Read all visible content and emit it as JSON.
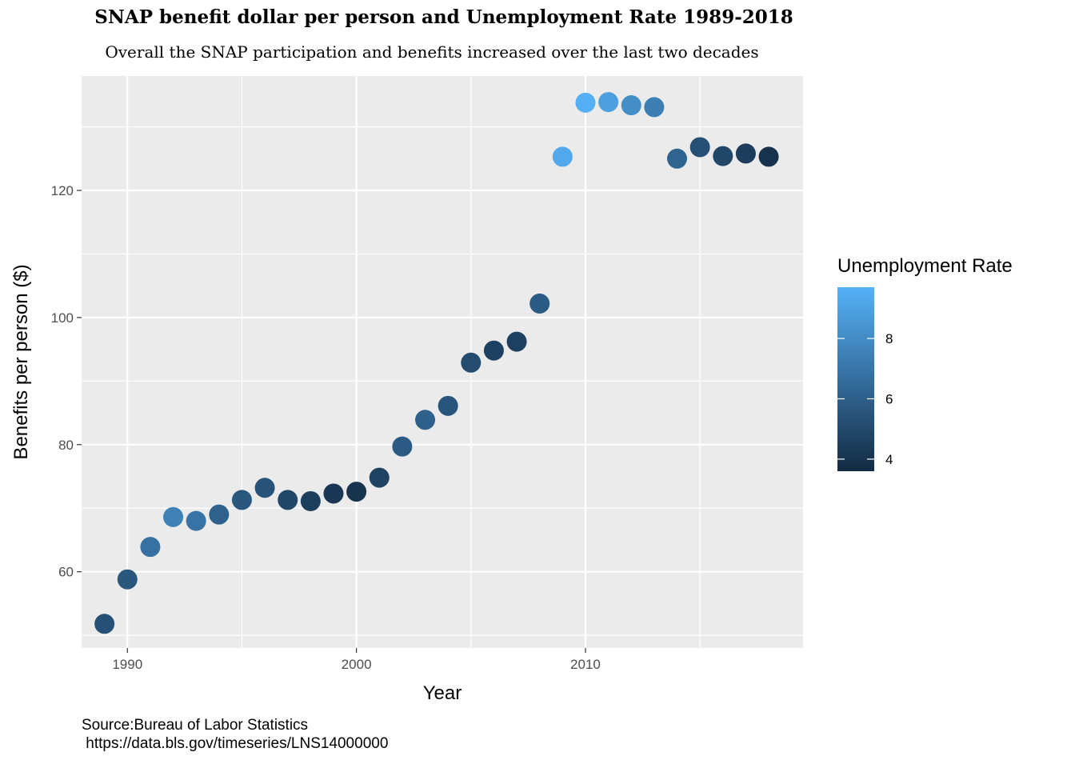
{
  "chart_data": {
    "type": "scatter",
    "title": "SNAP benefit dollar per person and Unemployment Rate 1989-2018",
    "subtitle": "Overall the SNAP participation and benefits increased over the last two decades",
    "xlabel": "Year",
    "ylabel": "Benefits per person ($)",
    "xlim": [
      1988,
      2019.5
    ],
    "ylim": [
      48,
      138
    ],
    "x_ticks": [
      1990,
      2000,
      2010
    ],
    "y_ticks": [
      60,
      80,
      100,
      120
    ],
    "grid": true,
    "legend": {
      "title": "Unemployment Rate",
      "placement": "right",
      "type": "colorbar",
      "range": [
        3.6,
        9.7
      ],
      "ticks": [
        4,
        6,
        8
      ],
      "color_low": "#132B43",
      "color_high": "#56B1F7"
    },
    "points": [
      {
        "x": 1989,
        "y": 51.8,
        "color_value": 5.3
      },
      {
        "x": 1990,
        "y": 58.8,
        "color_value": 5.6
      },
      {
        "x": 1991,
        "y": 63.9,
        "color_value": 6.8
      },
      {
        "x": 1992,
        "y": 68.6,
        "color_value": 7.5
      },
      {
        "x": 1993,
        "y": 68.0,
        "color_value": 6.9
      },
      {
        "x": 1994,
        "y": 69.0,
        "color_value": 6.1
      },
      {
        "x": 1995,
        "y": 71.3,
        "color_value": 5.6
      },
      {
        "x": 1996,
        "y": 73.2,
        "color_value": 5.4
      },
      {
        "x": 1997,
        "y": 71.3,
        "color_value": 4.9
      },
      {
        "x": 1998,
        "y": 71.1,
        "color_value": 4.5
      },
      {
        "x": 1999,
        "y": 72.3,
        "color_value": 4.2
      },
      {
        "x": 2000,
        "y": 72.6,
        "color_value": 4.0
      },
      {
        "x": 2001,
        "y": 74.8,
        "color_value": 4.7
      },
      {
        "x": 2002,
        "y": 79.7,
        "color_value": 5.8
      },
      {
        "x": 2003,
        "y": 83.9,
        "color_value": 6.0
      },
      {
        "x": 2004,
        "y": 86.1,
        "color_value": 5.5
      },
      {
        "x": 2005,
        "y": 92.9,
        "color_value": 5.1
      },
      {
        "x": 2006,
        "y": 94.8,
        "color_value": 4.6
      },
      {
        "x": 2007,
        "y": 96.2,
        "color_value": 4.6
      },
      {
        "x": 2008,
        "y": 102.2,
        "color_value": 5.8
      },
      {
        "x": 2009,
        "y": 125.3,
        "color_value": 9.3
      },
      {
        "x": 2010,
        "y": 133.8,
        "color_value": 9.6
      },
      {
        "x": 2011,
        "y": 133.9,
        "color_value": 8.9
      },
      {
        "x": 2012,
        "y": 133.4,
        "color_value": 8.1
      },
      {
        "x": 2013,
        "y": 133.1,
        "color_value": 7.4
      },
      {
        "x": 2014,
        "y": 125.0,
        "color_value": 6.2
      },
      {
        "x": 2015,
        "y": 126.8,
        "color_value": 5.3
      },
      {
        "x": 2016,
        "y": 125.4,
        "color_value": 4.9
      },
      {
        "x": 2017,
        "y": 125.8,
        "color_value": 4.4
      },
      {
        "x": 2018,
        "y": 125.3,
        "color_value": 3.9
      }
    ],
    "caption": [
      "Source:Bureau of Labor Statistics",
      " https://data.bls.gov/timeseries/LNS14000000"
    ]
  }
}
